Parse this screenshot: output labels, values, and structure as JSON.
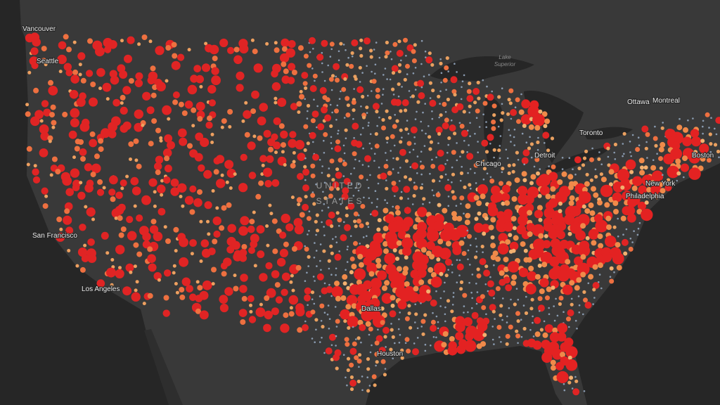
{
  "labels": {
    "vancouver": "Vancouver",
    "seattle": "Seattle",
    "san_francisco": "San Francisco",
    "los_angeles": "Los Angeles",
    "lake_superior": [
      "Lake",
      "Superior"
    ],
    "united_states": [
      "UNITED",
      "STATES"
    ],
    "chicago": "Chicago",
    "detroit": "Detroit",
    "toronto": "Toronto",
    "ottawa": "Ottawa",
    "montreal": "Montreal",
    "new_york": "New York",
    "philadelphia": "Philadelphia",
    "boston": "Boston",
    "dallas": "Dallas",
    "houston": "Houston"
  }
}
